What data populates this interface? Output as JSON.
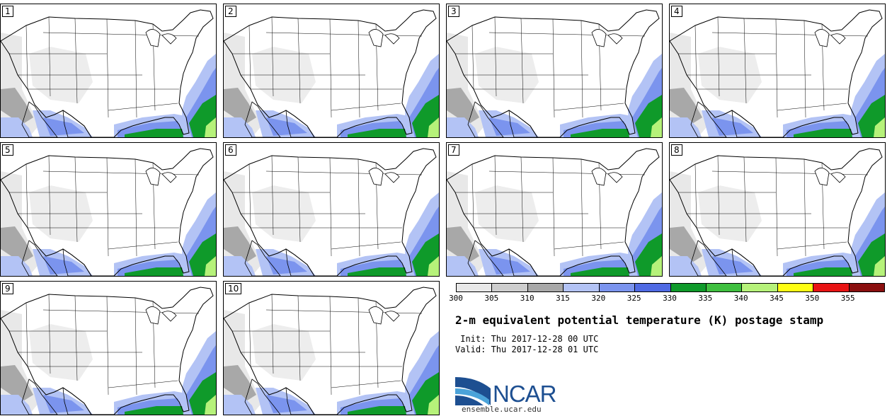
{
  "panels": [
    {
      "label": "1"
    },
    {
      "label": "2"
    },
    {
      "label": "3"
    },
    {
      "label": "4"
    },
    {
      "label": "5"
    },
    {
      "label": "6"
    },
    {
      "label": "7"
    },
    {
      "label": "8"
    },
    {
      "label": "9"
    },
    {
      "label": "10"
    }
  ],
  "legend": {
    "colors": [
      "#e8e8e8",
      "#cdcdcd",
      "#a8a8a8",
      "#b3c3f5",
      "#7b94ee",
      "#4f6ae3",
      "#0f9a2a",
      "#3fbf3f",
      "#b6f27a",
      "#ffff14",
      "#e81414",
      "#8a0f0f"
    ],
    "ticks": [
      "300",
      "305",
      "310",
      "315",
      "320",
      "325",
      "330",
      "335",
      "340",
      "345",
      "350",
      "355"
    ]
  },
  "title": "2-m equivalent potential temperature (K) postage stamp",
  "init_line": " Init: Thu 2017-12-28 00 UTC",
  "valid_line": "Valid: Thu 2017-12-28 01 UTC",
  "logo": {
    "name": "NCAR",
    "url": "ensemble.ucar.edu"
  }
}
